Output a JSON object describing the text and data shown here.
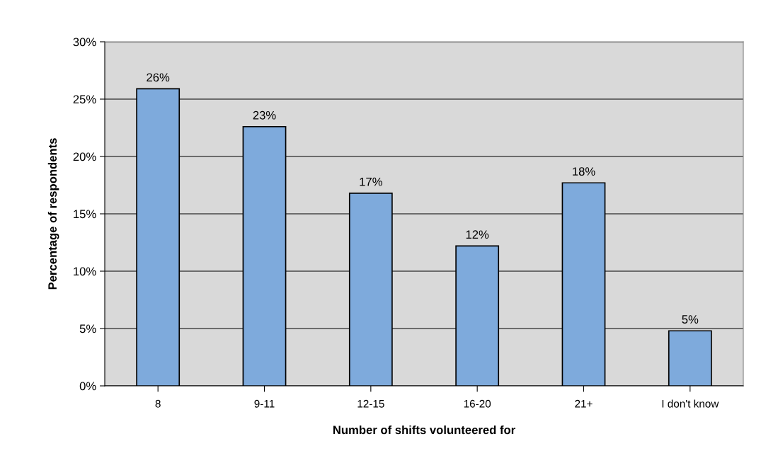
{
  "chart_data": {
    "type": "bar",
    "xlabel": "Number of shifts volunteered for",
    "ylabel": "Percentage of respondents",
    "categories": [
      "8",
      "9-11",
      "12-15",
      "16-20",
      "21+",
      "I don't know"
    ],
    "values": [
      25.9,
      22.6,
      16.8,
      12.2,
      17.7,
      4.8
    ],
    "value_labels": [
      "26%",
      "23%",
      "17%",
      "12%",
      "18%",
      "5%"
    ],
    "color": "#7eaadc",
    "ylim": [
      0,
      30
    ],
    "yticks": [
      {
        "value": 0,
        "label": "0%"
      },
      {
        "value": 5,
        "label": "5%"
      },
      {
        "value": 10,
        "label": "10%"
      },
      {
        "value": 15,
        "label": "15%"
      },
      {
        "value": 20,
        "label": "20%"
      },
      {
        "value": 25,
        "label": "25%"
      },
      {
        "value": 30,
        "label": "30%"
      }
    ],
    "grid": "y",
    "legend": false
  }
}
